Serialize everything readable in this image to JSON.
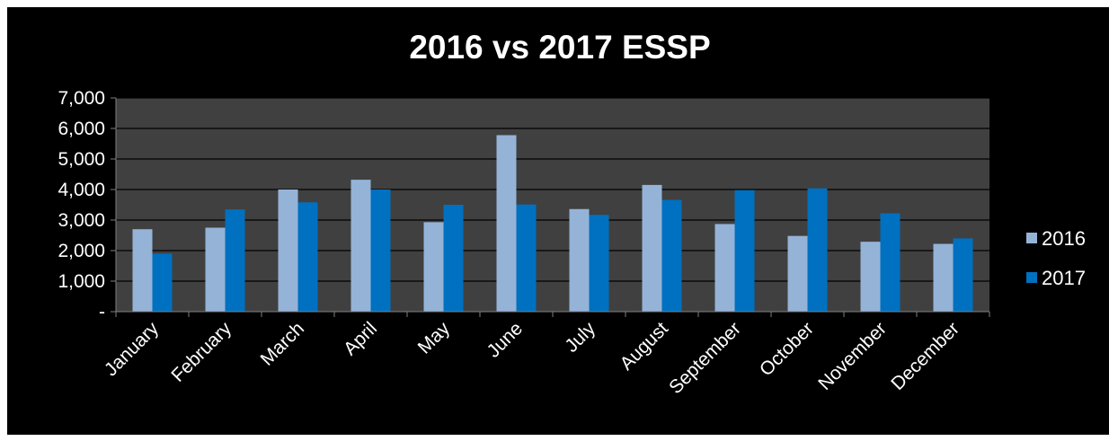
{
  "chart_data": {
    "type": "bar",
    "title": "2016 vs 2017 ESSP",
    "xlabel": "",
    "ylabel": "",
    "ylim": [
      0,
      7000
    ],
    "yticks": [
      0,
      1000,
      2000,
      3000,
      4000,
      5000,
      6000,
      7000
    ],
    "ytick_labels": [
      "-",
      "1,000",
      "2,000",
      "3,000",
      "4,000",
      "5,000",
      "6,000",
      "7,000"
    ],
    "categories": [
      "January",
      "February",
      "March",
      "April",
      "May",
      "June",
      "July",
      "August",
      "September",
      "October",
      "November",
      "December"
    ],
    "series": [
      {
        "name": "2016",
        "color": "#95b3d7",
        "values": [
          2700,
          2750,
          4000,
          4320,
          2930,
          5780,
          3360,
          4150,
          2870,
          2480,
          2290,
          2220
        ]
      },
      {
        "name": "2017",
        "color": "#0070c0",
        "values": [
          1900,
          3350,
          3580,
          4000,
          3500,
          3510,
          3170,
          3660,
          3980,
          4040,
          3220,
          2400
        ]
      }
    ],
    "grid": true,
    "legend_position": "right",
    "colors": {
      "page": "#000000",
      "plot": "#404040",
      "gridline": "#000000",
      "axis": "#7f7f7f",
      "text": "#ffffff"
    }
  }
}
